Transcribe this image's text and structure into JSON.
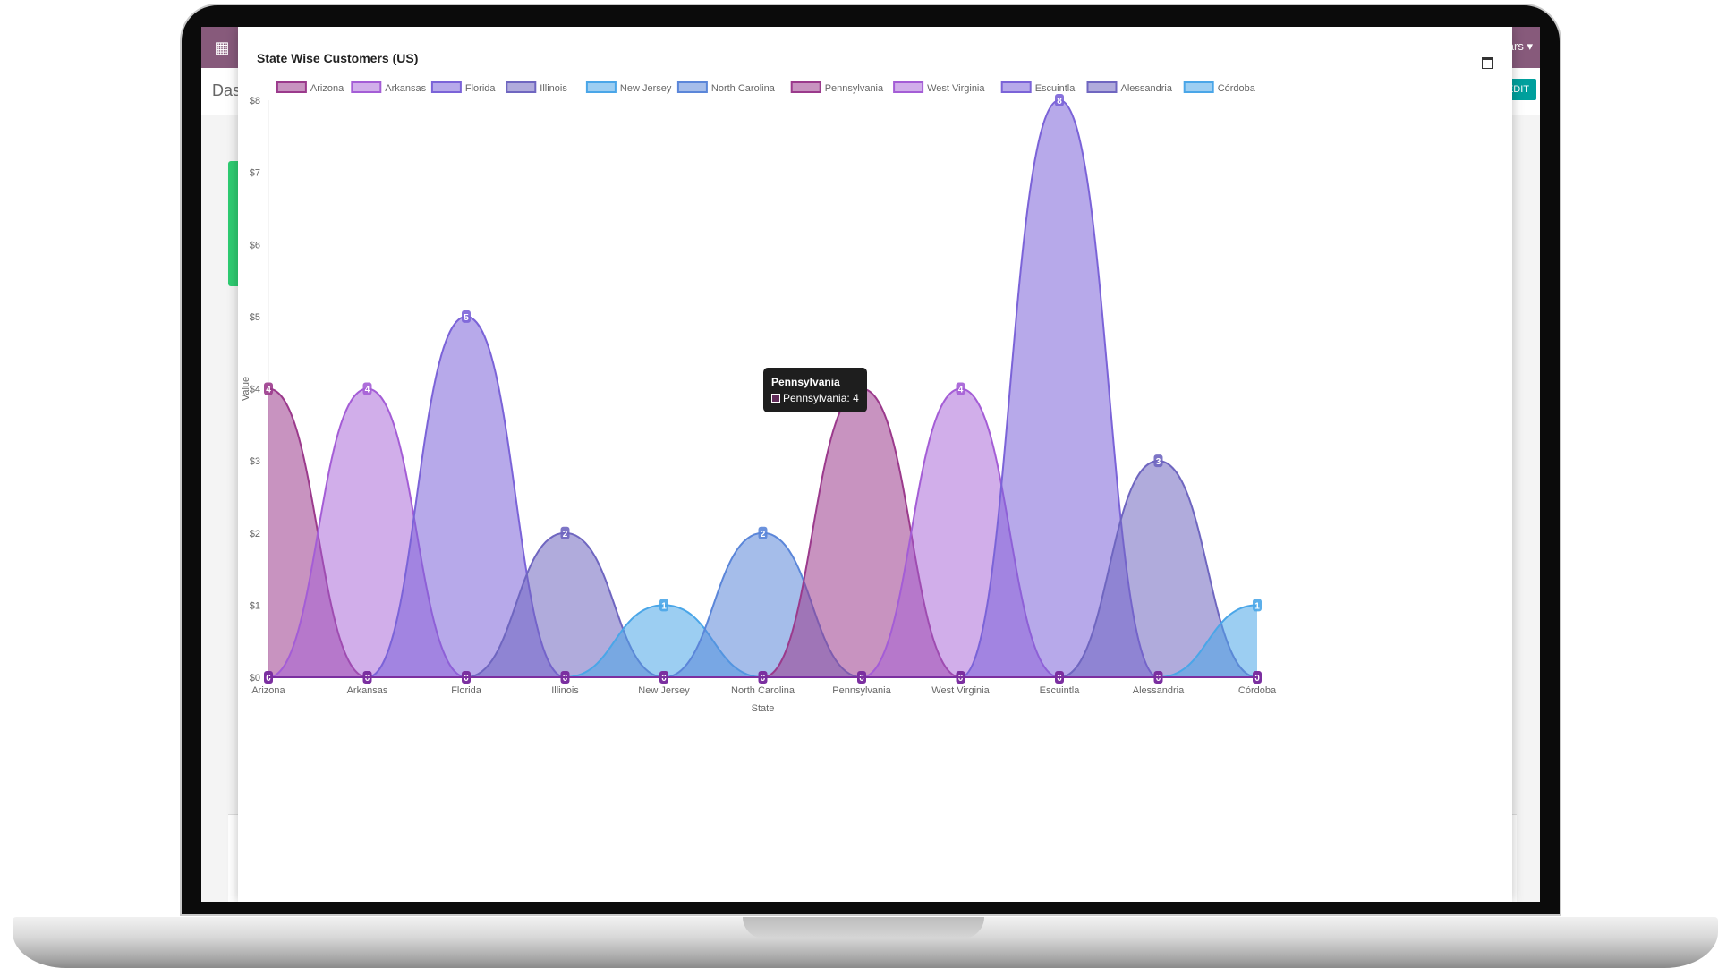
{
  "app": {
    "breadcrumb": "Dashboard",
    "user_menu": "ars ▾",
    "edit_label": "EDIT"
  },
  "chart_data": {
    "type": "area",
    "title": "State Wise Customers (US)",
    "xlabel": "State",
    "ylabel": "Value",
    "categories": [
      "Arizona",
      "Arkansas",
      "Florida",
      "Illinois",
      "New Jersey",
      "North Carolina",
      "Pennsylvania",
      "West Virginia",
      "Escuintla",
      "Alessandria",
      "Córdoba"
    ],
    "ylim": [
      0,
      8
    ],
    "yticks": [
      "$0",
      "$1",
      "$2",
      "$3",
      "$4",
      "$5",
      "$6",
      "$7",
      "$8"
    ],
    "legend_position": "top",
    "series": [
      {
        "name": "Arizona",
        "color": "#9b3a8c",
        "fill": "rgba(155,58,140,0.55)",
        "values": [
          4,
          0,
          0,
          0,
          0,
          0,
          0,
          0,
          0,
          0,
          0
        ]
      },
      {
        "name": "Arkansas",
        "color": "#a45dd6",
        "fill": "rgba(164,93,214,0.5)",
        "values": [
          0,
          4,
          0,
          0,
          0,
          0,
          0,
          0,
          0,
          0,
          0
        ]
      },
      {
        "name": "Florida",
        "color": "#7b63d8",
        "fill": "rgba(123,99,216,0.55)",
        "values": [
          0,
          0,
          5,
          0,
          0,
          0,
          0,
          0,
          0,
          0,
          0
        ]
      },
      {
        "name": "Illinois",
        "color": "#6f66c0",
        "fill": "rgba(111,102,192,0.55)",
        "values": [
          0,
          0,
          0,
          2,
          0,
          0,
          0,
          0,
          0,
          0,
          0
        ]
      },
      {
        "name": "New Jersey",
        "color": "#4aa6e8",
        "fill": "rgba(74,166,232,0.55)",
        "values": [
          0,
          0,
          0,
          0,
          1,
          0,
          0,
          0,
          0,
          0,
          0
        ]
      },
      {
        "name": "North Carolina",
        "color": "#5b86d9",
        "fill": "rgba(91,134,217,0.55)",
        "values": [
          0,
          0,
          0,
          0,
          0,
          2,
          0,
          0,
          0,
          0,
          0
        ]
      },
      {
        "name": "Pennsylvania",
        "color": "#9b3a8c",
        "fill": "rgba(155,58,140,0.55)",
        "values": [
          0,
          0,
          0,
          0,
          0,
          0,
          4,
          0,
          0,
          0,
          0
        ]
      },
      {
        "name": "West Virginia",
        "color": "#a45dd6",
        "fill": "rgba(164,93,214,0.5)",
        "values": [
          0,
          0,
          0,
          0,
          0,
          0,
          0,
          4,
          0,
          0,
          0
        ]
      },
      {
        "name": "Escuintla",
        "color": "#7b63d8",
        "fill": "rgba(123,99,216,0.55)",
        "values": [
          0,
          0,
          0,
          0,
          0,
          0,
          0,
          0,
          8,
          0,
          0
        ]
      },
      {
        "name": "Alessandria",
        "color": "#6f66c0",
        "fill": "rgba(111,102,192,0.55)",
        "values": [
          0,
          0,
          0,
          0,
          0,
          0,
          0,
          0,
          0,
          3,
          0
        ]
      },
      {
        "name": "Córdoba",
        "color": "#4aa6e8",
        "fill": "rgba(74,166,232,0.55)",
        "values": [
          0,
          0,
          0,
          0,
          0,
          0,
          0,
          0,
          0,
          0,
          1
        ]
      }
    ],
    "tooltip": {
      "title": "Pennsylvania",
      "series": "Pennsylvania",
      "value": 4
    }
  }
}
